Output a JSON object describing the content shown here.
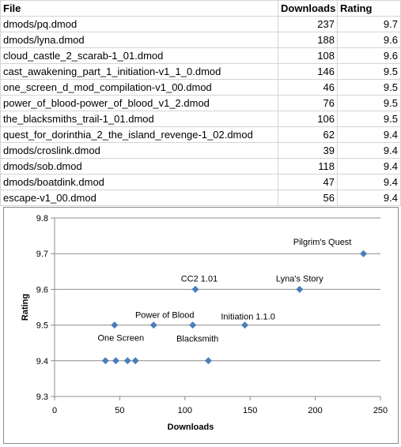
{
  "table": {
    "headers": [
      "File",
      "Downloads",
      "Rating"
    ],
    "rows": [
      [
        "dmods/pq.dmod",
        "237",
        "9.7"
      ],
      [
        "dmods/lyna.dmod",
        "188",
        "9.6"
      ],
      [
        "cloud_castle_2_scarab-1_01.dmod",
        "108",
        "9.6"
      ],
      [
        "cast_awakening_part_1_initiation-v1_1_0.dmod",
        "146",
        "9.5"
      ],
      [
        "one_screen_d_mod_compilation-v1_00.dmod",
        "46",
        "9.5"
      ],
      [
        "power_of_blood-power_of_blood_v1_2.dmod",
        "76",
        "9.5"
      ],
      [
        "the_blacksmiths_trail-1_01.dmod",
        "106",
        "9.5"
      ],
      [
        "quest_for_dorinthia_2_the_island_revenge-1_02.dmod",
        "62",
        "9.4"
      ],
      [
        "dmods/croslink.dmod",
        "39",
        "9.4"
      ],
      [
        "dmods/sob.dmod",
        "118",
        "9.4"
      ],
      [
        "dmods/boatdink.dmod",
        "47",
        "9.4"
      ],
      [
        "escape-v1_00.dmod",
        "56",
        "9.4"
      ]
    ]
  },
  "chart_data": {
    "type": "scatter",
    "xlabel": "Downloads",
    "ylabel": "Rating",
    "xlim": [
      0,
      250
    ],
    "ylim": [
      9.3,
      9.8
    ],
    "xticks": [
      "0",
      "50",
      "100",
      "150",
      "200",
      "250"
    ],
    "yticks": [
      "9.3",
      "9.4",
      "9.5",
      "9.6",
      "9.7",
      "9.8"
    ],
    "grid": "horizontal",
    "legend": "none",
    "marker_color": "#4a7ebb",
    "points": [
      {
        "x": 237,
        "y": 9.7,
        "label": "Pilgrim's Quest"
      },
      {
        "x": 188,
        "y": 9.6,
        "label": "Lyna's Story"
      },
      {
        "x": 108,
        "y": 9.6,
        "label": "CC2 1.01"
      },
      {
        "x": 146,
        "y": 9.5,
        "label": "Initiation 1.1.0"
      },
      {
        "x": 46,
        "y": 9.5,
        "label": "One Screen"
      },
      {
        "x": 76,
        "y": 9.5,
        "label": "Power of Blood"
      },
      {
        "x": 106,
        "y": 9.5,
        "label": "Blacksmith"
      },
      {
        "x": 62,
        "y": 9.4,
        "label": ""
      },
      {
        "x": 39,
        "y": 9.4,
        "label": ""
      },
      {
        "x": 118,
        "y": 9.4,
        "label": ""
      },
      {
        "x": 47,
        "y": 9.4,
        "label": ""
      },
      {
        "x": 56,
        "y": 9.4,
        "label": ""
      }
    ]
  }
}
